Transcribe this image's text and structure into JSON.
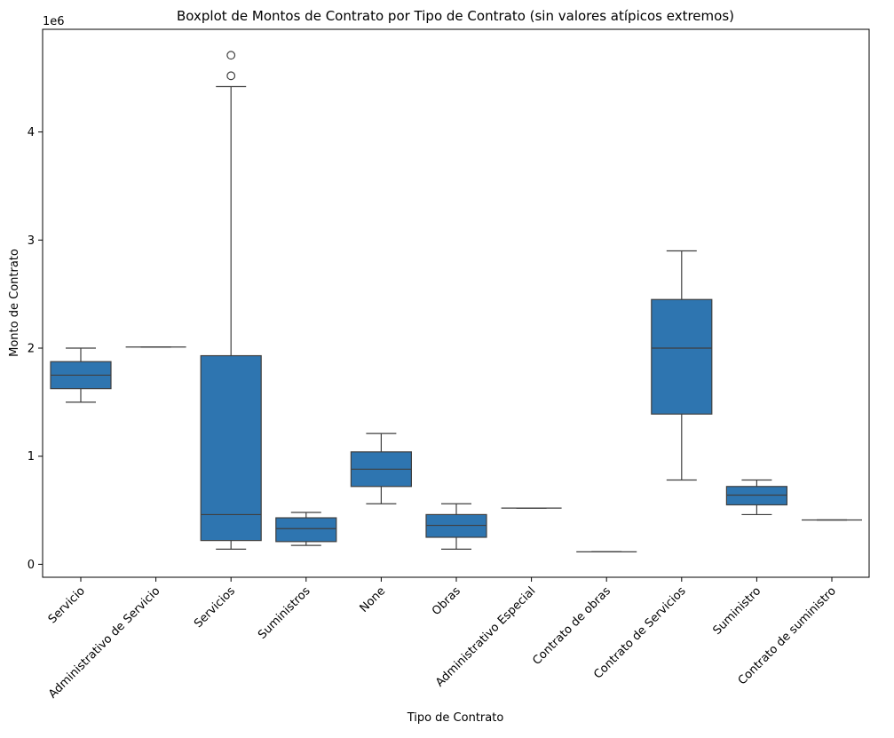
{
  "chart_data": {
    "type": "box",
    "title": "Boxplot de Montos de Contrato por Tipo de Contrato (sin valores atípicos extremos)",
    "xlabel": "Tipo de Contrato",
    "ylabel": "Monto de Contrato",
    "y_offset_text": "1e6",
    "ylim": [
      -0.12,
      4.95
    ],
    "y_ticks": [
      0,
      1,
      2,
      3,
      4
    ],
    "y_tick_labels": [
      "0",
      "1",
      "2",
      "3",
      "4"
    ],
    "y_unit_scale": 1000000,
    "grid": false,
    "x_tick_rotation": 45,
    "box_color": "#2e75b0",
    "line_color": "#3f3f3f",
    "categories": [
      "Servicio",
      "Administrativo de Servicio",
      "Servicios",
      "Suministros",
      "None",
      "Obras",
      "Administrativo Especial",
      "Contrato de obras",
      "Contrato de Servicios",
      "Suministro",
      "Contrato de suministro"
    ],
    "boxes": [
      {
        "whisker_low": 1.5,
        "q1": 1.625,
        "median": 1.75,
        "q3": 1.875,
        "whisker_high": 2.0,
        "outliers": []
      },
      {
        "whisker_low": 2.01,
        "q1": 2.01,
        "median": 2.01,
        "q3": 2.01,
        "whisker_high": 2.01,
        "outliers": []
      },
      {
        "whisker_low": 0.14,
        "q1": 0.22,
        "median": 0.46,
        "q3": 1.93,
        "whisker_high": 4.42,
        "outliers": [
          4.52,
          4.71
        ]
      },
      {
        "whisker_low": 0.175,
        "q1": 0.21,
        "median": 0.33,
        "q3": 0.43,
        "whisker_high": 0.48,
        "outliers": []
      },
      {
        "whisker_low": 0.56,
        "q1": 0.72,
        "median": 0.88,
        "q3": 1.04,
        "whisker_high": 1.21,
        "outliers": []
      },
      {
        "whisker_low": 0.14,
        "q1": 0.25,
        "median": 0.36,
        "q3": 0.46,
        "whisker_high": 0.56,
        "outliers": []
      },
      {
        "whisker_low": 0.52,
        "q1": 0.52,
        "median": 0.52,
        "q3": 0.52,
        "whisker_high": 0.52,
        "outliers": []
      },
      {
        "whisker_low": 0.115,
        "q1": 0.115,
        "median": 0.115,
        "q3": 0.115,
        "whisker_high": 0.115,
        "outliers": []
      },
      {
        "whisker_low": 0.78,
        "q1": 1.39,
        "median": 2.0,
        "q3": 2.45,
        "whisker_high": 2.9,
        "outliers": []
      },
      {
        "whisker_low": 0.46,
        "q1": 0.55,
        "median": 0.64,
        "q3": 0.72,
        "whisker_high": 0.78,
        "outliers": []
      },
      {
        "whisker_low": 0.41,
        "q1": 0.41,
        "median": 0.41,
        "q3": 0.41,
        "whisker_high": 0.41,
        "outliers": []
      }
    ]
  }
}
